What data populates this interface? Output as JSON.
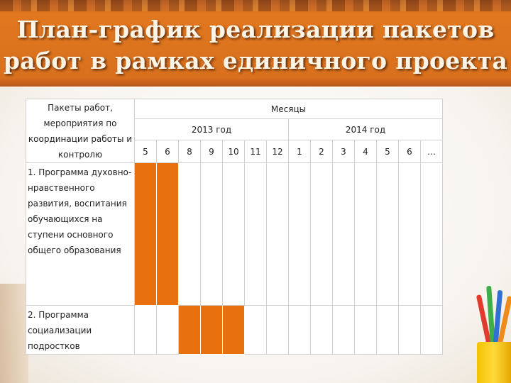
{
  "title_line1": "План-график реализации пакетов",
  "title_line2": "работ в рамках единичного проекта",
  "table": {
    "header_work": "Пакеты работ, мероприятия по координации работы и контролю",
    "header_months": "Месяцы",
    "year_2013": "2013 год",
    "year_2014": "2014 год",
    "months": [
      "5",
      "6",
      "8",
      "9",
      "10",
      "11",
      "12",
      "1",
      "2",
      "3",
      "4",
      "5",
      "6",
      "…"
    ],
    "rows": [
      {
        "label": "1. Программа духовно-нравственного развития, воспитания обучающихся на ступени основного общего образования",
        "filled": [
          true,
          true,
          false,
          false,
          false,
          false,
          false,
          false,
          false,
          false,
          false,
          false,
          false,
          false
        ]
      },
      {
        "label": "2. Программа социализации подростков",
        "filled": [
          false,
          false,
          true,
          true,
          true,
          false,
          false,
          false,
          false,
          false,
          false,
          false,
          false,
          false
        ]
      }
    ]
  },
  "colors": {
    "accent_orange": "#e8700e",
    "title_band": "#d8701e"
  }
}
